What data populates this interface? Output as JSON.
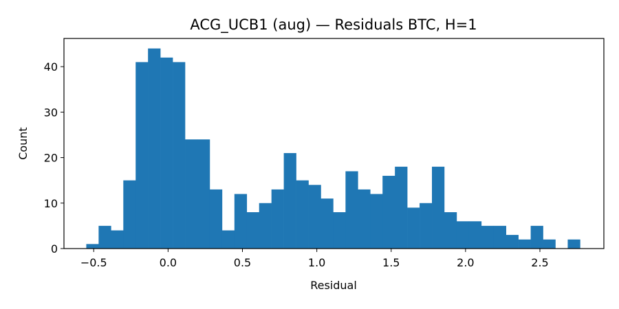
{
  "chart_data": {
    "type": "bar",
    "title": "ACG_UCB1 (aug) — Residuals BTC, H=1",
    "xlabel": "Residual",
    "ylabel": "Count",
    "xlim": [
      -0.7,
      2.93
    ],
    "ylim": [
      0,
      46.2
    ],
    "grid": false,
    "bar_color": "#1f77b4",
    "x_ticks": [
      {
        "value": -0.5,
        "label": "−0.5"
      },
      {
        "value": 0.0,
        "label": "0.0"
      },
      {
        "value": 0.5,
        "label": "0.5"
      },
      {
        "value": 1.0,
        "label": "1.0"
      },
      {
        "value": 1.5,
        "label": "1.5"
      },
      {
        "value": 2.0,
        "label": "2.0"
      },
      {
        "value": 2.5,
        "label": "2.5"
      }
    ],
    "y_ticks": [
      {
        "value": 0,
        "label": "0"
      },
      {
        "value": 10,
        "label": "10"
      },
      {
        "value": 20,
        "label": "20"
      },
      {
        "value": 30,
        "label": "30"
      },
      {
        "value": 40,
        "label": "40"
      }
    ],
    "bin_edges": [
      -0.55,
      -0.467,
      -0.384,
      -0.301,
      -0.218,
      -0.135,
      -0.052,
      0.031,
      0.114,
      0.197,
      0.28,
      0.363,
      0.446,
      0.529,
      0.612,
      0.695,
      0.778,
      0.861,
      0.944,
      1.027,
      1.11,
      1.193,
      1.276,
      1.359,
      1.442,
      1.525,
      1.608,
      1.691,
      1.774,
      1.857,
      1.94,
      2.023,
      2.106,
      2.189,
      2.272,
      2.355,
      2.438,
      2.521,
      2.604,
      2.687,
      2.77
    ],
    "counts": [
      1,
      5,
      4,
      15,
      41,
      44,
      42,
      41,
      24,
      24,
      13,
      4,
      12,
      8,
      10,
      13,
      21,
      15,
      14,
      11,
      8,
      17,
      13,
      12,
      16,
      18,
      9,
      10,
      18,
      8,
      6,
      6,
      5,
      5,
      3,
      2,
      5,
      2,
      0,
      2
    ]
  }
}
